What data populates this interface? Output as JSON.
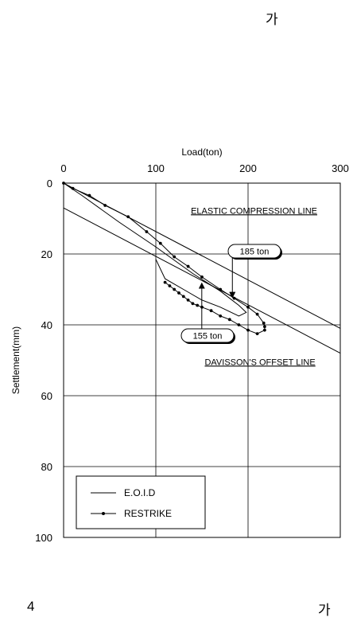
{
  "page": {
    "corner_top": "가",
    "corner_bottom_left": "4",
    "corner_bottom_right": "가"
  },
  "chart_data": {
    "type": "line",
    "title": "",
    "xlabel": "Load(ton)",
    "ylabel": "Settlement(mm)",
    "xlim": [
      0,
      300
    ],
    "ylim": [
      0,
      100
    ],
    "y_inverted": true,
    "x_axis_position": "top",
    "grid": true,
    "x_ticks": [
      "0",
      "100",
      "200",
      "300"
    ],
    "y_ticks": [
      "0",
      "20",
      "40",
      "60",
      "80",
      "100"
    ],
    "legend": {
      "position": "bottom-left",
      "entries": [
        "E.O.I.D",
        "RESTRIKE"
      ]
    },
    "series": [
      {
        "name": "E.O.I.D",
        "style": "line",
        "x": [
          0,
          20,
          60,
          100,
          140,
          170,
          190,
          198,
          190,
          170,
          150,
          130,
          110,
          100
        ],
        "y": [
          0,
          3.5,
          11,
          18,
          25.5,
          30.5,
          34.5,
          36.5,
          37.5,
          35,
          33,
          30,
          27,
          21.5
        ]
      },
      {
        "name": "RESTRIKE",
        "style": "line-dot",
        "x": [
          0,
          10,
          28,
          45,
          70,
          90,
          105,
          120,
          135,
          150,
          170,
          185,
          200,
          210,
          217,
          218,
          218,
          210,
          200,
          190,
          180,
          170,
          160,
          150,
          145,
          140,
          135,
          130,
          125,
          120,
          115,
          110
        ],
        "y": [
          0,
          1.5,
          3.5,
          6.3,
          9.5,
          13.7,
          17,
          20.8,
          23.5,
          26.5,
          30,
          32.5,
          35,
          37,
          39.5,
          40.5,
          41.5,
          42.5,
          41.5,
          40,
          38.5,
          37.5,
          36,
          35,
          34.5,
          34,
          33,
          32,
          31,
          30,
          29,
          28
        ]
      }
    ],
    "reference_lines": [
      {
        "label": "ELASTIC COMPRESSION LINE",
        "x": [
          0,
          300
        ],
        "y": [
          0,
          41
        ]
      },
      {
        "label": "DAVISSON'S OFFSET LINE",
        "x": [
          0,
          300
        ],
        "y": [
          7,
          48
        ]
      }
    ],
    "callouts": [
      {
        "label": "185 ton",
        "x": 183,
        "y": 32.5
      },
      {
        "label": "155 ton",
        "x": 155,
        "y": 28
      }
    ]
  }
}
